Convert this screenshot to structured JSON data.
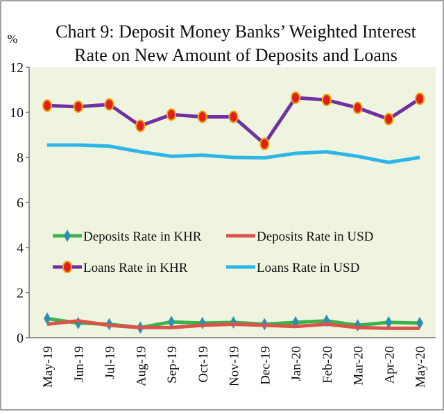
{
  "chart_data": {
    "type": "line",
    "title": [
      "Chart 9: Deposit Money Banks’ Weighted Interest",
      "Rate on New Amount of Deposits and Loans"
    ],
    "y_label": "%",
    "categories": [
      "May-19",
      "Jun-19",
      "Jul-19",
      "Aug-19",
      "Sep-19",
      "Oct-19",
      "Nov-19",
      "Dec-19",
      "Jan-20",
      "Feb-20",
      "Mar-20",
      "Apr-20",
      "May-20"
    ],
    "ylim": [
      0,
      12
    ],
    "yticks": [
      0,
      2,
      4,
      6,
      8,
      10,
      12
    ],
    "series": [
      {
        "name": "Deposits Rate in KHR",
        "color": "#3cb34a",
        "marker": "diamond",
        "marker_color": "#2b8fb0",
        "values": [
          0.85,
          0.65,
          0.6,
          0.45,
          0.7,
          0.65,
          0.68,
          0.6,
          0.68,
          0.75,
          0.55,
          0.68,
          0.65
        ]
      },
      {
        "name": "Deposits Rate in USD",
        "color": "#d9534a",
        "values": [
          0.6,
          0.75,
          0.55,
          0.45,
          0.45,
          0.55,
          0.6,
          0.55,
          0.5,
          0.6,
          0.45,
          0.42,
          0.42
        ]
      },
      {
        "name": "Loans Rate in KHR",
        "color": "#7030a0",
        "marker": "circle",
        "marker_color": "#e02020",
        "values": [
          10.3,
          10.25,
          10.35,
          9.4,
          9.9,
          9.8,
          9.8,
          8.6,
          10.65,
          10.55,
          10.2,
          9.7,
          10.6
        ]
      },
      {
        "name": "Loans Rate in USD",
        "color": "#2eb5e8",
        "values": [
          8.55,
          8.55,
          8.5,
          8.25,
          8.05,
          8.1,
          8.0,
          7.98,
          8.18,
          8.25,
          8.05,
          7.78,
          8.0
        ]
      }
    ]
  }
}
